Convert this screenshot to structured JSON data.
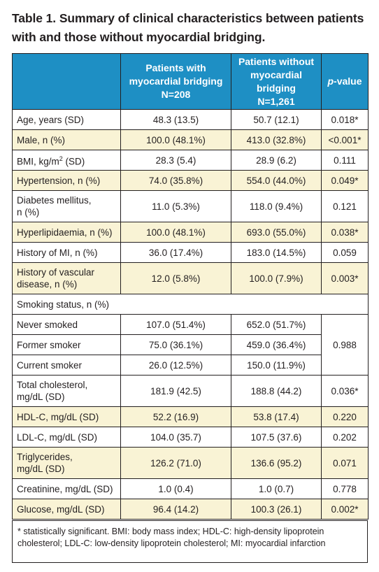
{
  "title": "Table 1. Summary of clinical characteristics between patients with and those without myocardial bridging.",
  "headers": {
    "col_empty": "",
    "col_with_line1": "Patients with",
    "col_with_line2": "myocardial bridging",
    "col_with_line3": "N=208",
    "col_without_line1": "Patients without",
    "col_without_line2": "myocardial bridging",
    "col_without_line3": "N=1,261",
    "col_p_italic": "p",
    "col_p_rest": "-value"
  },
  "rows": [
    {
      "label": "Age, years (SD)",
      "with": "48.3 (13.5)",
      "without": "50.7 (12.1)",
      "p": "0.018*"
    },
    {
      "label": "Male, n (%)",
      "with": "100.0 (48.1%)",
      "without": "413.0 (32.8%)",
      "p": "<0.001*"
    },
    {
      "label_pre": "BMI, kg/m",
      "label_sup": "2",
      "label_post": " (SD)",
      "with": "28.3 (5.4)",
      "without": "28.9 (6.2)",
      "p": "0.111"
    },
    {
      "label": "Hypertension, n (%)",
      "with": "74.0 (35.8%)",
      "without": "554.0 (44.0%)",
      "p": "0.049*"
    },
    {
      "label_line1": "Diabetes mellitus,",
      "label_line2": "n (%)",
      "with": "11.0 (5.3%)",
      "without": "118.0 (9.4%)",
      "p": "0.121"
    },
    {
      "label": "Hyperlipidaemia, n (%)",
      "with": "100.0 (48.1%)",
      "without": "693.0 (55.0%)",
      "p": "0.038*"
    },
    {
      "label": "History of MI, n (%)",
      "with": "36.0 (17.4%)",
      "without": "183.0 (14.5%)",
      "p": "0.059"
    },
    {
      "label_line1": "History of vascular",
      "label_line2": "disease, n (%)",
      "with": "12.0 (5.8%)",
      "without": "100.0 (7.9%)",
      "p": "0.003*"
    },
    {
      "label": "Smoking status, n (%)"
    },
    {
      "label": "Never smoked",
      "with": "107.0 (51.4%)",
      "without": "652.0 (51.7%)"
    },
    {
      "label": "Former smoker",
      "with": "75.0 (36.1%)",
      "without": "459.0 (36.4%)",
      "p": "0.988"
    },
    {
      "label": "Current smoker",
      "with": "26.0 (12.5%)",
      "without": "150.0 (11.9%)"
    },
    {
      "label_line1": "Total cholesterol,",
      "label_line2": "mg/dL (SD)",
      "with": "181.9 (42.5)",
      "without": "188.8 (44.2)",
      "p": "0.036*"
    },
    {
      "label": "HDL-C, mg/dL (SD)",
      "with": "52.2 (16.9)",
      "without": "53.8 (17.4)",
      "p": "0.220"
    },
    {
      "label": "LDL-C, mg/dL (SD)",
      "with": "104.0 (35.7)",
      "without": "107.5 (37.6)",
      "p": "0.202"
    },
    {
      "label_line1": "Triglycerides,",
      "label_line2": "mg/dL (SD)",
      "with": "126.2 (71.0)",
      "without": "136.6 (95.2)",
      "p": "0.071"
    },
    {
      "label": "Creatinine, mg/dL (SD)",
      "with": "1.0 (0.4)",
      "without": "1.0 (0.7)",
      "p": "0.778"
    },
    {
      "label": "Glucose, mg/dL (SD)",
      "with": "96.4 (14.2)",
      "without": "100.3 (26.1)",
      "p": "0.002*"
    }
  ],
  "footnote": "* statistically significant. BMI: body mass index; HDL-C: high-density lipoprotein cholesterol; LDL-C: low-density lipoprotein cholesterol; MI: myocardial infarction",
  "colors": {
    "header_bg": "#1e8fc4",
    "alt_row_bg": "#f9f3d5",
    "border": "#231f20"
  }
}
